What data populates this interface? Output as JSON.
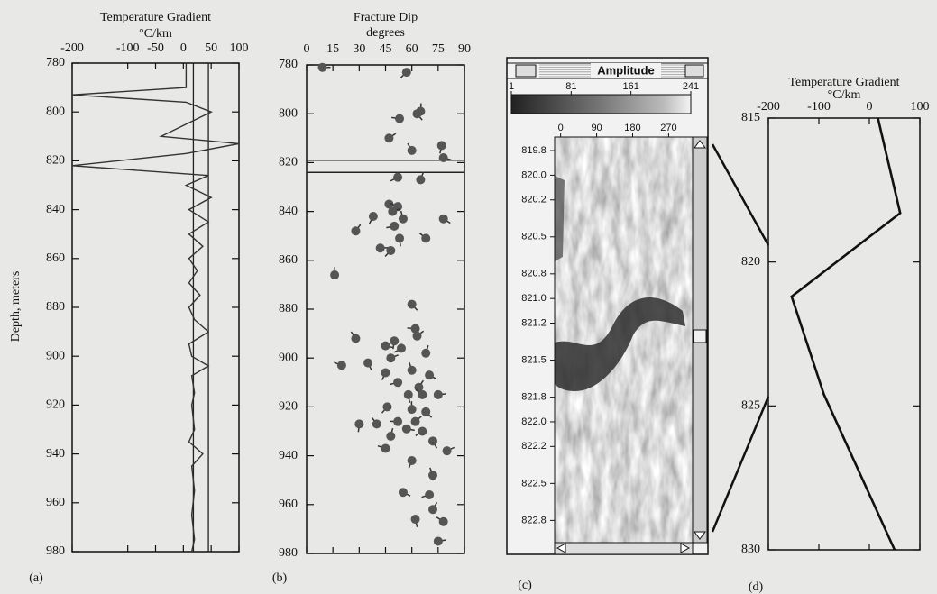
{
  "chart_data": [
    {
      "type": "line",
      "label": "(a)",
      "title": "Temperature Gradient",
      "xlabel": "°C/km",
      "ylabel": "Depth, meters",
      "xlim": [
        -200,
        100
      ],
      "xticks": [
        -200,
        -100,
        -50,
        0,
        50,
        100
      ],
      "ylim": [
        780,
        980
      ],
      "yticks": [
        780,
        800,
        820,
        840,
        860,
        880,
        900,
        920,
        940,
        960,
        980
      ],
      "color": "#333333",
      "depth": [
        780,
        790,
        793,
        796,
        800,
        805,
        810,
        813,
        817,
        822,
        826,
        830,
        835,
        840,
        845,
        850,
        855,
        860,
        865,
        870,
        875,
        880,
        885,
        890,
        895,
        900,
        904,
        908,
        915,
        920,
        930,
        935,
        940,
        945,
        955,
        965,
        975,
        980
      ],
      "values": [
        5,
        5,
        -200,
        5,
        50,
        5,
        -40,
        100,
        5,
        -200,
        45,
        5,
        50,
        10,
        45,
        10,
        35,
        10,
        25,
        10,
        30,
        10,
        20,
        45,
        10,
        15,
        45,
        15,
        20,
        15,
        20,
        10,
        35,
        15,
        20,
        15,
        20,
        15
      ],
      "reference_lines": [
        18,
        45
      ]
    },
    {
      "type": "scatter",
      "label": "(b)",
      "title": "Fracture Dip",
      "xlabel": "degrees",
      "xlim": [
        0,
        90
      ],
      "xticks": [
        0,
        15,
        30,
        45,
        60,
        75,
        90
      ],
      "ylim": [
        780,
        980
      ],
      "yticks": [
        780,
        800,
        820,
        840,
        860,
        880,
        900,
        920,
        940,
        960,
        980
      ],
      "color": "#555555",
      "depth": [
        781,
        783,
        799,
        800,
        802,
        810,
        813,
        815,
        818,
        826,
        827,
        837,
        838,
        840,
        842,
        843,
        843,
        846,
        848,
        851,
        851,
        855,
        856,
        866,
        878,
        888,
        891,
        893,
        892,
        895,
        896,
        898,
        902,
        903,
        900,
        906,
        905,
        907,
        910,
        912,
        915,
        915,
        915,
        920,
        921,
        922,
        926,
        926,
        927,
        927,
        929,
        930,
        932,
        934,
        937,
        938,
        942,
        948,
        955,
        956,
        962,
        966,
        967,
        975
      ],
      "values": [
        9,
        57,
        65,
        63,
        53,
        47,
        77,
        60,
        78,
        52,
        65,
        47,
        52,
        49,
        38,
        55,
        78,
        50,
        28,
        53,
        68,
        42,
        48,
        16,
        60,
        62,
        63,
        50,
        28,
        45,
        54,
        68,
        35,
        20,
        48,
        45,
        60,
        70,
        52,
        64,
        58,
        66,
        75,
        46,
        60,
        68,
        52,
        62,
        30,
        40,
        57,
        66,
        48,
        72,
        45,
        80,
        60,
        72,
        55,
        70,
        72,
        62,
        78,
        75
      ],
      "reference_lines": [
        819,
        824
      ]
    },
    {
      "type": "image",
      "label": "(c)",
      "title": "Amplitude",
      "scale_lim": [
        1,
        241
      ],
      "scale_ticks": [
        1,
        81,
        161,
        241
      ],
      "xlim": [
        -15,
        330
      ],
      "xticks": [
        0,
        90,
        180,
        270
      ],
      "ylim": [
        819.69,
        822.98
      ],
      "yticks": [
        819.8,
        {
          "value": 820,
          "label": "820.0"
        },
        820.2,
        820.5,
        820.8,
        {
          "value": 821,
          "label": "821.0"
        },
        821.2,
        821.5,
        821.8,
        {
          "value": 822,
          "label": "822.0"
        },
        822.2,
        822.5,
        822.8
      ]
    },
    {
      "type": "line",
      "label": "(d)",
      "title": "Temperature Gradient",
      "xlabel": "°C/km",
      "xlim": [
        -200,
        100
      ],
      "xticks": [
        -200,
        -100,
        0,
        100
      ],
      "ylim": [
        815,
        830
      ],
      "yticks": [
        815,
        820,
        825,
        830
      ],
      "color": "#111111",
      "depth": [
        815,
        818.3,
        821.2,
        824.6,
        830
      ],
      "values": [
        17,
        61,
        -154,
        -90,
        50
      ]
    }
  ]
}
